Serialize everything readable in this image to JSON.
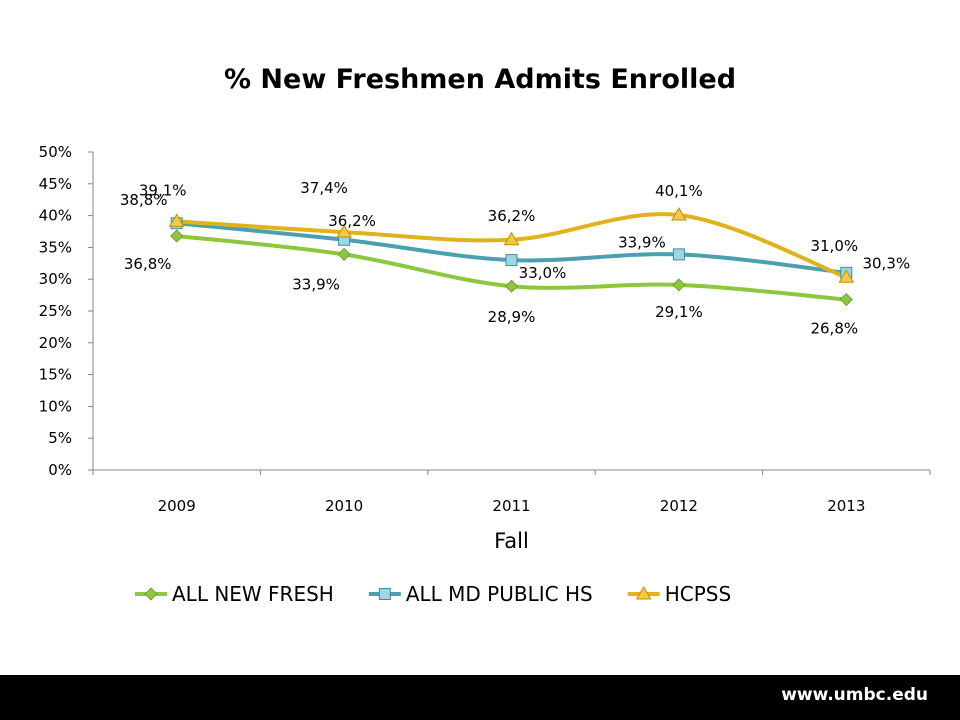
{
  "chart_data": {
    "type": "line",
    "title": "% New Freshmen Admits Enrolled",
    "xlabel": "Fall",
    "ylabel": "",
    "categories": [
      "2009",
      "2010",
      "2011",
      "2012",
      "2013"
    ],
    "y_ticks": [
      "0%",
      "5%",
      "10%",
      "15%",
      "20%",
      "25%",
      "30%",
      "35%",
      "40%",
      "45%",
      "50%"
    ],
    "ylim": [
      0,
      50
    ],
    "grid": false,
    "legend_position": "bottom",
    "series": [
      {
        "name": "ALL NEW FRESH",
        "color": "#8dc63f",
        "marker": "diamond",
        "values": [
          36.8,
          33.9,
          28.9,
          29.1,
          26.8
        ],
        "labels": [
          "36,8%",
          "33,9%",
          "28,9%",
          "29,1%",
          "26,8%"
        ]
      },
      {
        "name": "ALL MD PUBLIC HS",
        "color": "#4a9fb0",
        "marker": "square",
        "values": [
          38.8,
          36.2,
          33.0,
          33.9,
          31.0
        ],
        "labels": [
          "38,8%",
          "36,2%",
          "33,0%",
          "33,9%",
          "31,0%"
        ]
      },
      {
        "name": "HCPSS",
        "color": "#e0b21b",
        "marker": "triangle",
        "values": [
          39.1,
          37.4,
          36.2,
          40.1,
          30.3
        ],
        "labels": [
          "39,1%",
          "37,4%",
          "36,2%",
          "40,1%",
          "30,3%"
        ]
      }
    ]
  },
  "footer": {
    "url": "www.umbc.edu"
  }
}
